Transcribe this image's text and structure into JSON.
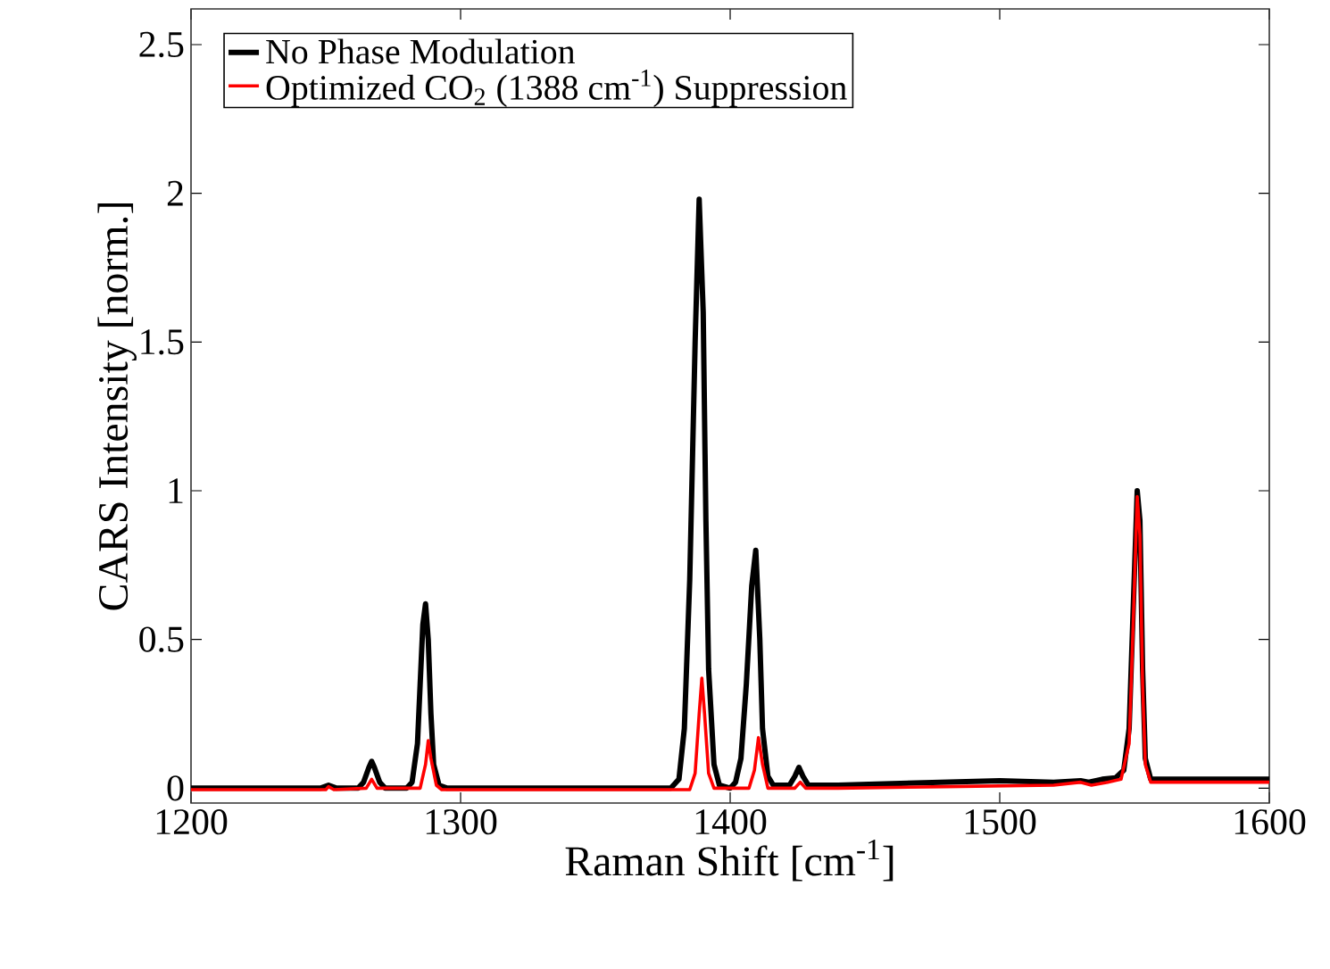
{
  "chart_data": {
    "type": "line",
    "xlabel": "Raman Shift [cm$^{-1}$]",
    "ylabel": "CARS Intensity [norm.]",
    "xlim": [
      1200,
      1600
    ],
    "ylim": [
      -0.05,
      2.62
    ],
    "xticks": [
      1200,
      1300,
      1400,
      1500,
      1600
    ],
    "yticks": [
      0,
      0.5,
      1,
      1.5,
      2,
      2.5
    ],
    "legend": "top left",
    "series": [
      {
        "name": "No Phase Modulation",
        "color": "#000000",
        "x": [
          1200,
          1240,
          1248,
          1251,
          1254,
          1262,
          1264,
          1266,
          1267,
          1268,
          1270,
          1272,
          1280,
          1282,
          1284,
          1285,
          1286,
          1287,
          1288,
          1289,
          1290,
          1292,
          1295,
          1378,
          1381,
          1383,
          1385,
          1387,
          1388.5,
          1390,
          1391,
          1392,
          1394,
          1396,
          1400,
          1402,
          1404,
          1406,
          1408,
          1409.5,
          1411,
          1412,
          1414,
          1416,
          1422,
          1424,
          1425.5,
          1427,
          1429,
          1440,
          1460,
          1480,
          1500,
          1520,
          1530,
          1533,
          1538,
          1543,
          1546,
          1548,
          1549.5,
          1551,
          1552,
          1553,
          1554,
          1556,
          1570,
          1600
        ],
        "values": [
          0,
          0,
          0,
          0.01,
          0,
          0,
          0.02,
          0.07,
          0.09,
          0.07,
          0.02,
          0,
          0,
          0.02,
          0.15,
          0.35,
          0.55,
          0.62,
          0.5,
          0.25,
          0.08,
          0.01,
          0,
          0,
          0.03,
          0.2,
          0.7,
          1.5,
          1.98,
          1.6,
          0.9,
          0.4,
          0.08,
          0.01,
          0,
          0.02,
          0.1,
          0.35,
          0.68,
          0.8,
          0.5,
          0.2,
          0.04,
          0.01,
          0.01,
          0.04,
          0.07,
          0.04,
          0.01,
          0.01,
          0.015,
          0.02,
          0.025,
          0.02,
          0.025,
          0.02,
          0.03,
          0.035,
          0.06,
          0.2,
          0.6,
          1.0,
          0.9,
          0.4,
          0.1,
          0.03,
          0.03,
          0.03
        ]
      },
      {
        "name": "Optimized CO$_{2}$ (1388 cm$^{-1}$) Suppression",
        "color": "#ff0000",
        "x": [
          1200,
          1250,
          1251,
          1253,
          1265,
          1267,
          1269,
          1285,
          1287,
          1288,
          1289,
          1291,
          1293,
          1385,
          1387,
          1388.5,
          1389.5,
          1390.5,
          1392,
          1394,
          1407,
          1409,
          1410.5,
          1412,
          1414,
          1424,
          1426,
          1428,
          1440,
          1480,
          1520,
          1530,
          1534,
          1540,
          1545,
          1548,
          1549.5,
          1551,
          1552,
          1553,
          1554,
          1556,
          1600
        ],
        "values": [
          -0.005,
          -0.005,
          0.005,
          -0.005,
          0,
          0.03,
          0,
          0,
          0.08,
          0.16,
          0.1,
          0.01,
          -0.005,
          -0.005,
          0.05,
          0.25,
          0.37,
          0.25,
          0.05,
          0,
          0,
          0.06,
          0.17,
          0.08,
          0,
          0,
          0.02,
          0,
          0,
          0.005,
          0.01,
          0.02,
          0.01,
          0.02,
          0.03,
          0.15,
          0.55,
          0.98,
          0.85,
          0.35,
          0.08,
          0.02,
          0.02
        ]
      }
    ]
  }
}
